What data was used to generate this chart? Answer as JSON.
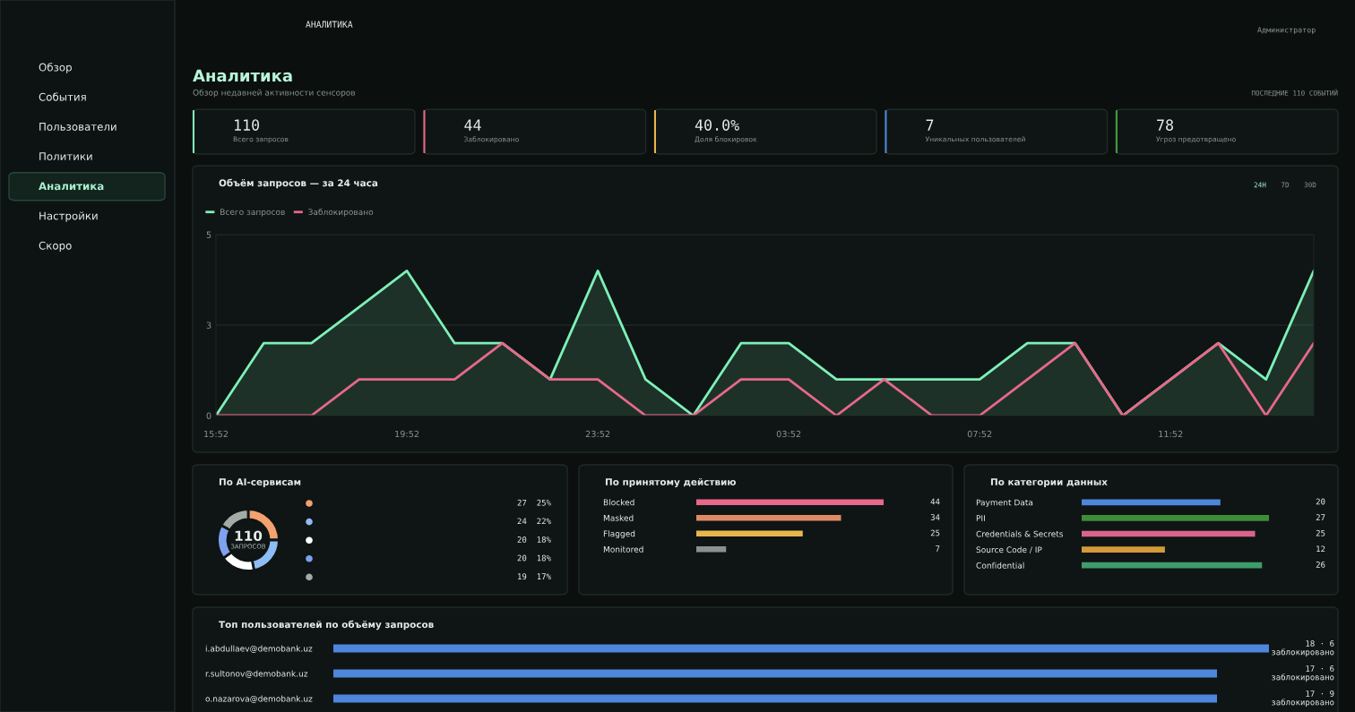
{
  "chart_data": [
    {
      "type": "other",
      "annotations": [
        "Обзор",
        "События",
        "Пользователи",
        "Политики",
        "Аналитика",
        "Настройки",
        "Скоро"
      ]
    },
    {
      "type": "other",
      "title": "Аналитика",
      "subtitle": "Обзор недавней активности сенсоров",
      "annotations": [
        "АНАЛИТИКА",
        "ПОСЛЕДНИЕ 110 СОБЫТИЙ",
        "Администратор"
      ]
    },
    {
      "type": "other",
      "title": "110",
      "subtitle": "Всего запросов"
    },
    {
      "type": "other",
      "title": "44",
      "subtitle": "Заблокировано"
    },
    {
      "type": "other",
      "title": "40.0%",
      "subtitle": "Доля блокировок"
    },
    {
      "type": "other",
      "title": "7",
      "subtitle": "Уникальных пользователей"
    },
    {
      "type": "other",
      "title": "78",
      "subtitle": "Угроз предотвращено"
    },
    {
      "type": "line",
      "title": "Объём запросов — за 24 часа",
      "annotations": [
        "24H",
        "7D",
        "30D"
      ],
      "categories": [
        "15:52",
        null,
        null,
        null,
        "19:52",
        null,
        null,
        null,
        "23:52",
        null,
        null,
        null,
        "03:52",
        null,
        null,
        null,
        "07:52",
        null,
        null,
        null,
        "11:52",
        null,
        null,
        null
      ],
      "series": [
        {
          "name": "Всего запросов",
          "type": "area",
          "color": "#7ef0b8",
          "values": [
            0,
            2,
            2,
            3,
            4,
            2,
            2,
            1,
            4,
            1,
            0,
            2,
            2,
            1,
            1,
            1,
            1,
            2,
            2,
            0,
            1,
            2,
            1,
            4
          ]
        },
        {
          "name": "Заблокировано",
          "type": "line",
          "color": "#e8688a",
          "values": [
            0,
            0,
            0,
            1,
            1,
            1,
            2,
            1,
            1,
            0,
            0,
            1,
            1,
            0,
            1,
            0,
            0,
            1,
            2,
            0,
            1,
            2,
            0,
            2
          ]
        }
      ],
      "ylim": [
        0,
        5
      ],
      "yticks": [
        0,
        {
          "value": 2.5,
          "label": "3"
        },
        5
      ],
      "grid": "y",
      "legend": "top left",
      "tick_labels": "xy"
    },
    {
      "type": "donut",
      "title": "По AI-сервисам",
      "categories": [
        null,
        null,
        null,
        null,
        null
      ],
      "values": [
        25,
        22,
        18,
        18,
        17
      ],
      "colors": [
        "#f2a26e",
        "#8ebcf4",
        "#ffffff",
        "#7ea2f0",
        "#a3aba7"
      ],
      "annotations": [
        "110",
        "ЗАПРОСОВ",
        "27  25%",
        "24  22%",
        "20  18%",
        "20  18%",
        "19  17%"
      ]
    },
    {
      "type": "bar",
      "orientation": "horizontal",
      "title": "По принятому действию",
      "categories": [
        "Blocked",
        "Masked",
        "Flagged",
        "Monitored"
      ],
      "values": [
        44,
        34,
        25,
        7
      ],
      "colors": [
        "#e8688a",
        "#de8a66",
        "#eab64c",
        "#8b918e"
      ],
      "data_labels": true,
      "tick_labels": "y"
    },
    {
      "type": "bar",
      "orientation": "horizontal",
      "title": "По категории данных",
      "categories": [
        "Payment Data",
        "PII",
        "Credentials & Secrets",
        "Source Code / IP",
        "Confidential"
      ],
      "values": [
        20,
        27,
        25,
        12,
        26
      ],
      "colors": [
        "#4e86dc",
        "#3f8c37",
        "#d9648a",
        "#d39a3a",
        "#3f9c6c"
      ],
      "data_labels": true,
      "tick_labels": "y"
    },
    {
      "type": "bar",
      "orientation": "horizontal",
      "title": "Топ пользователей по объёму запросов",
      "categories": [
        "i.abdullaev@demobank.uz",
        "r.sultonov@demobank.uz",
        "o.nazarova@demobank.uz"
      ],
      "values": [
        18,
        17,
        17
      ],
      "colors": [
        "#4e86dc",
        "#4e86dc",
        "#4e86dc"
      ],
      "value_labels": [
        "18 · 6 заблокировано",
        "17 · 6 заблокировано",
        "17 · 9 заблокировано"
      ],
      "tick_labels": "y"
    }
  ]
}
